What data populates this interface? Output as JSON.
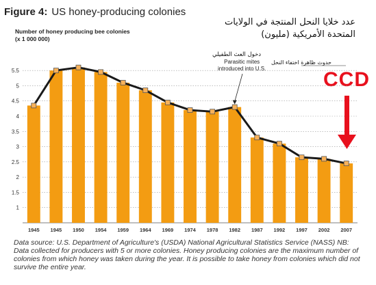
{
  "header": {
    "figure_label": "Figure 4:",
    "title": "US honey-producing colonies",
    "arabic_title_line1": "عدد خلايا النحل المنتجة في الولايات",
    "arabic_title_line2": "المتحدة الأمريكية (مليون)"
  },
  "annotations": {
    "arabic_mites": "دخول العث الطفيلي",
    "mites_line1": "Parasitic mites",
    "mites_line2": "introduced into U.S.",
    "arabic_ccd": "حدوث ظاهرة اختفاء النحل",
    "ccd_label": "CCD"
  },
  "colors": {
    "bar": "#f39c12",
    "line": "#1a1a1a",
    "marker_fill": "#f7b15a",
    "ccd_red": "#e8101d",
    "grid": "#9a9a9a"
  },
  "footnote": "Data source: U.S. Department of Agriculture's (USDA) National Agricultural Statistics Service (NASS) NB: Data collected for producers with 5 or more colonies. Honey producing colonies are the maximum number of colonies from which honey was taken during the year. It is possible to take honey from colonies which did not survive the entire year.",
  "chart_data": {
    "type": "bar",
    "ylabel_line1": "Number of honey producing bee colonies",
    "ylabel_line2": "(x 1 000 000)",
    "categories": [
      "1945",
      "1945",
      "1950",
      "1954",
      "1959",
      "1964",
      "1969",
      "1974",
      "1978",
      "1982",
      "1987",
      "1992",
      "1997",
      "2002",
      "2007"
    ],
    "values": [
      4.35,
      5.5,
      5.6,
      5.45,
      5.1,
      4.85,
      4.45,
      4.2,
      4.15,
      4.3,
      3.3,
      3.1,
      2.65,
      2.6,
      2.45
    ],
    "yticks": [
      "1",
      "1.5",
      "2",
      "2.5",
      "3",
      "3.5",
      "4",
      "4.5",
      "5",
      "5.5"
    ],
    "ylim": [
      0.5,
      5.75
    ],
    "grid": true,
    "overlay_line": true
  }
}
